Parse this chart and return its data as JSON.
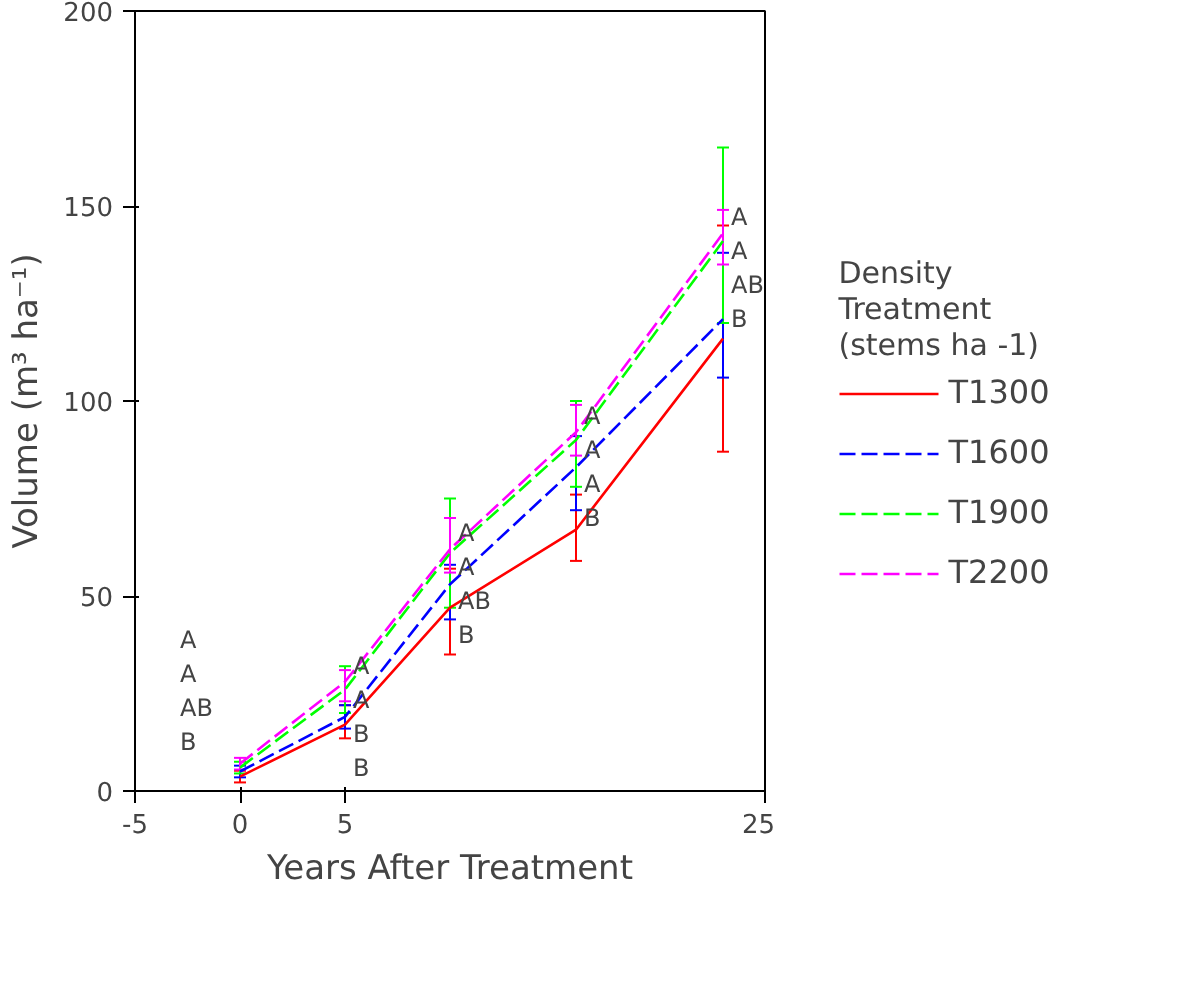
{
  "chart_data": {
    "type": "line",
    "xlabel": "Years After Treatment",
    "ylabel": "Volume (m³ ha⁻¹)",
    "legend_title": "Density Treatment (stems ha -1)",
    "legend": "right",
    "grid": false,
    "marker": "none",
    "x": [
      0,
      5,
      10,
      16,
      23
    ],
    "xlim": [
      -5,
      25
    ],
    "xticks": [
      -5,
      0,
      5,
      25
    ],
    "ylim": [
      0,
      200
    ],
    "yticks": [
      0,
      50,
      100,
      150,
      200
    ],
    "series": [
      {
        "name": "T1300",
        "color": "#ff0000",
        "line_style": "solid",
        "values": [
          3.7,
          17,
          47,
          67,
          116
        ],
        "errors": [
          1.5,
          [
            13.5,
            22
          ],
          [
            35,
            57
          ],
          [
            59,
            76
          ],
          [
            87,
            145
          ]
        ]
      },
      {
        "name": "T1600",
        "color": "#0000ff",
        "line_style": "dashed",
        "values": [
          5,
          19,
          53,
          83,
          121
        ],
        "errors": [
          1.5,
          [
            16,
            22
          ],
          [
            44,
            58
          ],
          [
            72,
            91
          ],
          [
            106,
            138
          ]
        ]
      },
      {
        "name": "T1900",
        "color": "#00ff00",
        "line_style": "dashed",
        "values": [
          6,
          26,
          61,
          90,
          141
        ],
        "errors": [
          1.5,
          [
            20,
            32
          ],
          [
            47,
            75
          ],
          [
            78,
            100
          ],
          [
            120,
            165
          ]
        ]
      },
      {
        "name": "T2200",
        "color": "#ff00ff",
        "line_style": "dashed",
        "values": [
          7,
          28,
          62,
          92,
          143
        ],
        "errors": [
          1.5,
          [
            23,
            31
          ],
          [
            56,
            70
          ],
          [
            86,
            99
          ],
          [
            135,
            149
          ]
        ]
      }
    ],
    "annotations": [
      "A",
      "A",
      "AB",
      "B",
      "A",
      "A",
      "B",
      "B",
      "A",
      "A",
      "AB",
      "B",
      "A",
      "A",
      "A",
      "B",
      "A",
      "A",
      "AB",
      "B"
    ]
  }
}
